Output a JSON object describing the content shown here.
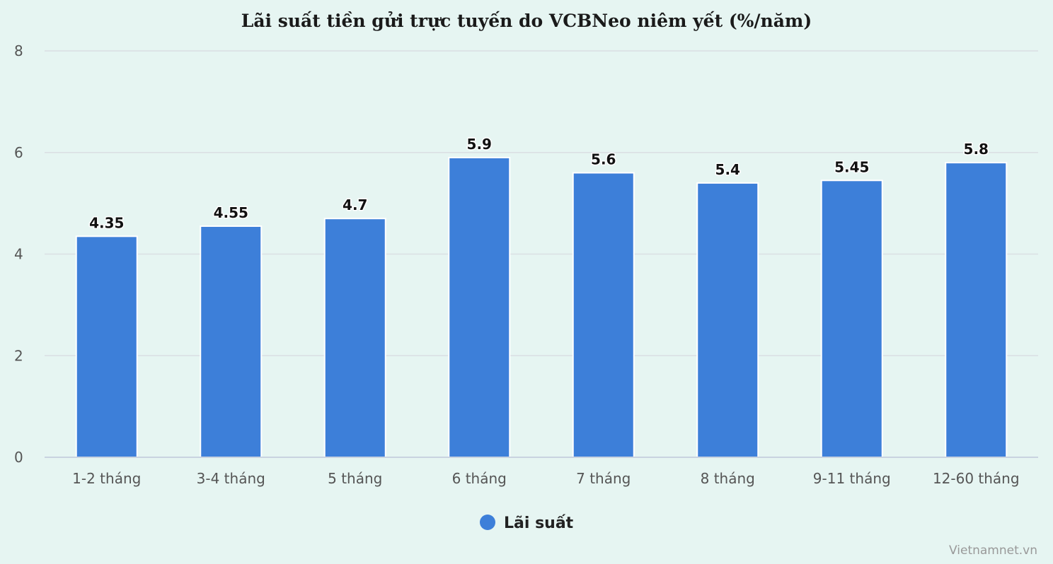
{
  "chart_data": {
    "type": "bar",
    "title": "Lãi suất tiền gửi trực tuyến do VCBNeo niêm yết (%/năm)",
    "categories": [
      "1-2 tháng",
      "3-4 tháng",
      "5 tháng",
      "6 tháng",
      "7 tháng",
      "8 tháng",
      "9-11 tháng",
      "12-60 tháng"
    ],
    "series": [
      {
        "name": "Lãi suất",
        "values": [
          4.35,
          4.55,
          4.7,
          5.9,
          5.6,
          5.4,
          5.45,
          5.8
        ],
        "labels": [
          "4.35",
          "4.55",
          "4.7",
          "5.9",
          "5.6",
          "5.4",
          "5.45",
          "5.8"
        ],
        "color": "#3d7fd9"
      }
    ],
    "ylim": [
      0,
      8
    ],
    "yticks": [
      0,
      2,
      4,
      6,
      8
    ],
    "ytick_labels": [
      "0",
      "2",
      "4",
      "6",
      "8"
    ],
    "grid": true,
    "legend": "bottom-center",
    "credit": "Vietnamnet.vn"
  }
}
